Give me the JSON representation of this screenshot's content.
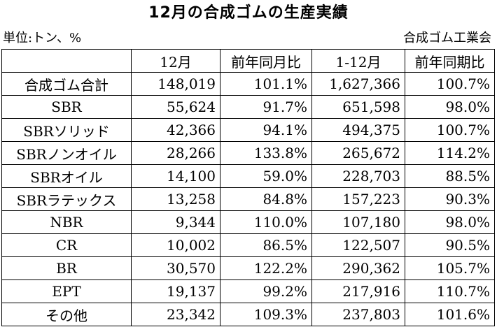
{
  "title": "12月の合成ゴムの生産実績",
  "unit": "単位:トン、%",
  "source": "合成ゴム工業会",
  "table": {
    "headers": [
      "",
      "12月",
      "前年同月比",
      "1-12月",
      "前年同期比"
    ],
    "rows": [
      [
        "合成ゴム合計",
        "148,019",
        "101.1%",
        "1,627,366",
        "100.7%"
      ],
      [
        "SBR",
        "55,624",
        "91.7%",
        "651,598",
        "98.0%"
      ],
      [
        "SBRソリッド",
        "42,366",
        "94.1%",
        "494,375",
        "100.7%"
      ],
      [
        "SBRノンオイル",
        "28,266",
        "133.8%",
        "265,672",
        "114.2%"
      ],
      [
        "SBRオイル",
        "14,100",
        "59.0%",
        "228,703",
        "88.5%"
      ],
      [
        "SBRラテックス",
        "13,258",
        "84.8%",
        "157,223",
        "90.3%"
      ],
      [
        "NBR",
        "9,344",
        "110.0%",
        "107,180",
        "98.0%"
      ],
      [
        "CR",
        "10,002",
        "86.5%",
        "122,507",
        "90.5%"
      ],
      [
        "BR",
        "30,570",
        "122.2%",
        "290,362",
        "105.7%"
      ],
      [
        "EPT",
        "19,137",
        "99.2%",
        "217,916",
        "110.7%"
      ],
      [
        "その他",
        "23,342",
        "109.3%",
        "237,803",
        "101.6%"
      ]
    ]
  }
}
